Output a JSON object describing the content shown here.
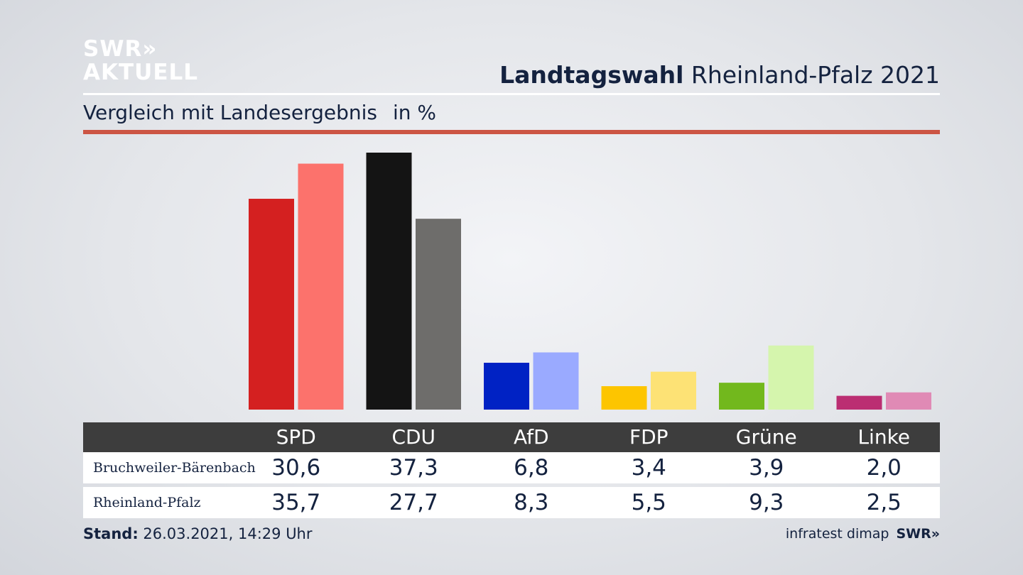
{
  "logo": {
    "line1": "SWR»",
    "line2": "AKTUELL"
  },
  "header": {
    "title_bold": "Landtagswahl",
    "title_rest": "Rheinland-Pfalz 2021"
  },
  "subtitle": {
    "text": "Vergleich mit Landesergebnis",
    "unit": "in %"
  },
  "chart_data": {
    "type": "bar",
    "title": "Landtagswahl Rheinland-Pfalz 2021",
    "subtitle": "Vergleich mit Landesergebnis in %",
    "categories": [
      "SPD",
      "CDU",
      "AfD",
      "FDP",
      "Grüne",
      "Linke"
    ],
    "series": [
      {
        "name": "Bruchweiler-Bärenbach",
        "values": [
          30.6,
          37.3,
          6.8,
          3.4,
          3.9,
          2.0
        ],
        "colors": [
          "#d42020",
          "#141414",
          "#0022c4",
          "#fdc500",
          "#72b81d",
          "#bb2e72"
        ]
      },
      {
        "name": "Rheinland-Pfalz",
        "values": [
          35.7,
          27.7,
          8.3,
          5.5,
          9.3,
          2.5
        ],
        "colors": [
          "#fc726c",
          "#6e6d6b",
          "#9aaaff",
          "#fde275",
          "#d5f5ad",
          "#e08ab5"
        ]
      }
    ],
    "display_values": [
      [
        "30,6",
        "37,3",
        "6,8",
        "3,4",
        "3,9",
        "2,0"
      ],
      [
        "35,7",
        "27,7",
        "8,3",
        "5,5",
        "9,3",
        "2,5"
      ]
    ],
    "ylim": [
      0,
      37.3
    ],
    "grid": false,
    "legend": "table-below"
  },
  "footer": {
    "stand_label": "Stand:",
    "stand_value": "26.03.2021, 14:29 Uhr",
    "source": "infratest dimap",
    "brand": "SWR»"
  }
}
